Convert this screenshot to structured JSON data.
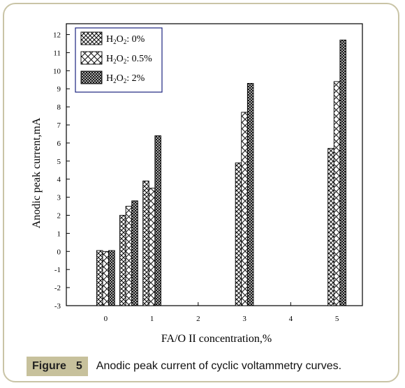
{
  "accent_color": "#c7c19c",
  "chart_data": {
    "type": "bar",
    "xlabel": "FA/O II concentration,%",
    "ylabel": "Anodic peak current,mA",
    "xlim": [
      -0.85,
      5.55
    ],
    "ylim": [
      -3,
      12.6
    ],
    "xticks": [
      0,
      1,
      2,
      3,
      4,
      5
    ],
    "yticks": [
      -3,
      -2,
      -1,
      0,
      1,
      2,
      3,
      4,
      5,
      6,
      7,
      8,
      9,
      10,
      11,
      12
    ],
    "legend_position": "top-left",
    "groups": [
      {
        "x": 0,
        "values": [
          0.05,
          0.0,
          0.05
        ]
      },
      {
        "x": 0.5,
        "values": [
          2.0,
          2.5,
          2.8
        ]
      },
      {
        "x": 1,
        "values": [
          3.9,
          3.5,
          6.4
        ]
      },
      {
        "x": 3,
        "values": [
          4.9,
          7.7,
          9.3
        ]
      },
      {
        "x": 5,
        "values": [
          5.7,
          9.4,
          11.7
        ]
      }
    ],
    "series": [
      {
        "name": "H2O2: 0%",
        "label_main": "H",
        "label_sub1": "2",
        "label_mid": "O",
        "label_sub2": "2",
        "label_tail": ": 0%"
      },
      {
        "name": "H2O2: 0.5%",
        "label_main": "H",
        "label_sub1": "2",
        "label_mid": "O",
        "label_sub2": "2",
        "label_tail": ": 0.5%"
      },
      {
        "name": "H2O2: 2%",
        "label_main": "H",
        "label_sub1": "2",
        "label_mid": "O",
        "label_sub2": "2",
        "label_tail": ": 2%"
      }
    ]
  },
  "caption": {
    "figure_word": "Figure",
    "figure_number": "5",
    "text": "Anodic peak current of cyclic voltammetry curves."
  }
}
